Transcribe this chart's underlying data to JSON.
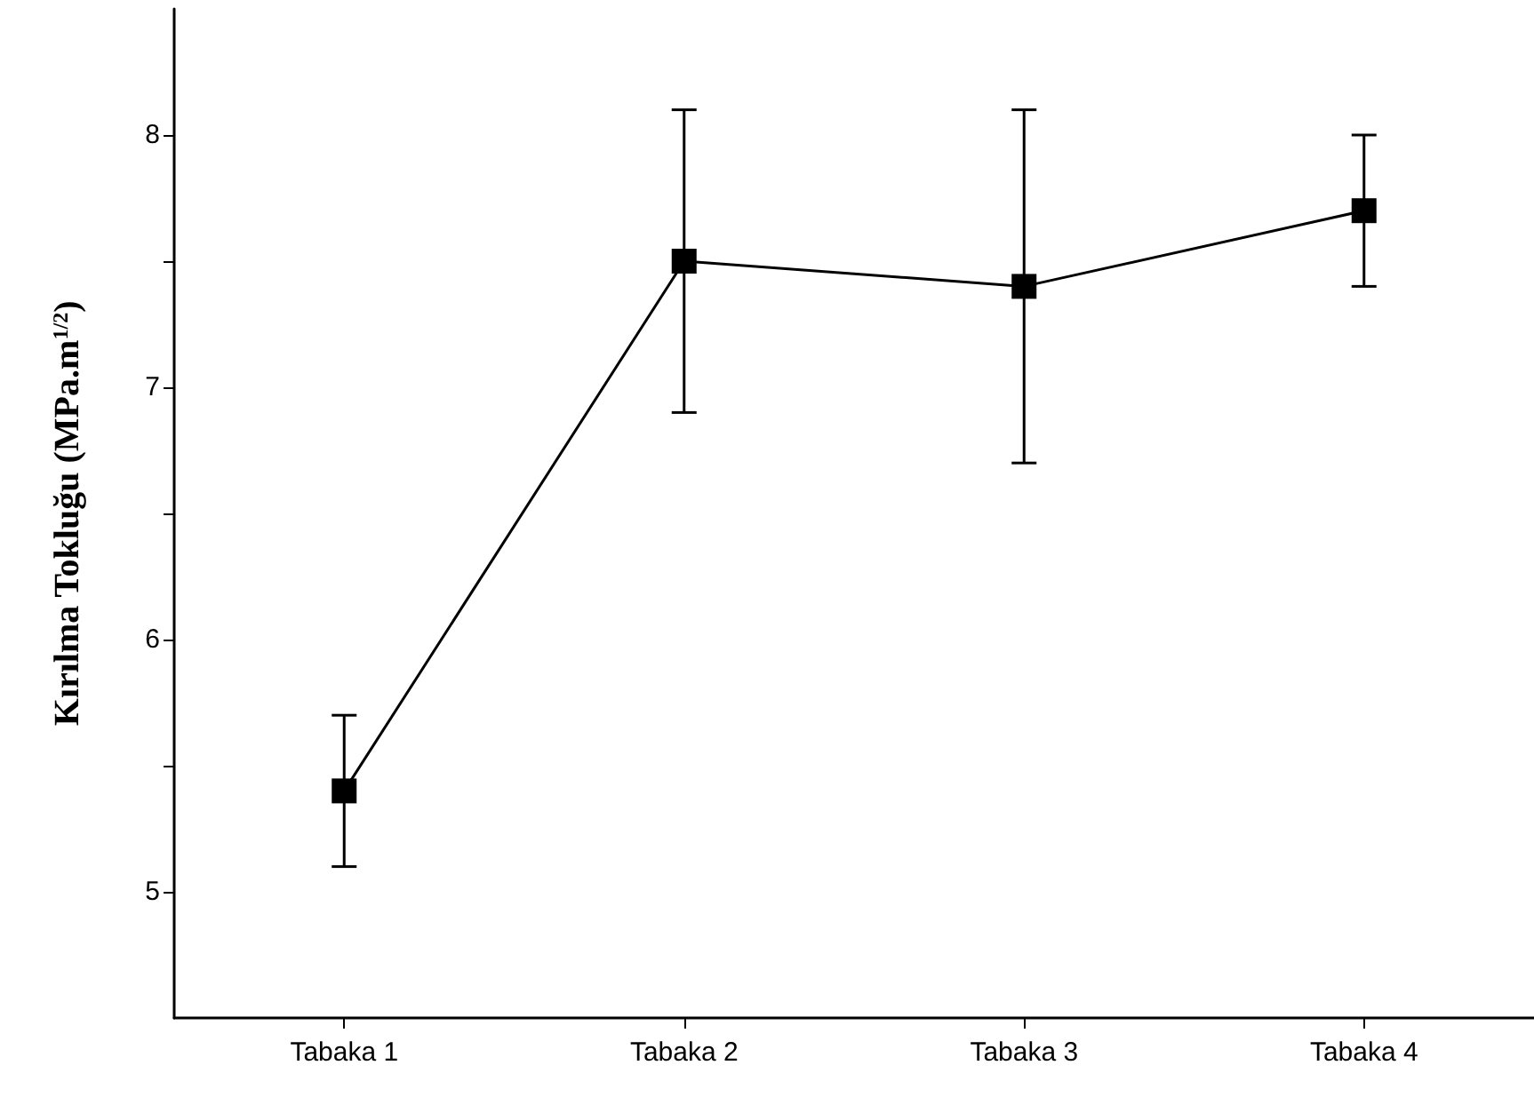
{
  "chart_data": {
    "type": "line",
    "ylabel": "Kırılma Tokluğu (MPa.m$^{1/2}$)",
    "categories": [
      "Tabaka 1",
      "Tabaka 2",
      "Tabaka 3",
      "Tabaka 4"
    ],
    "series": [
      {
        "color": "#000000",
        "values": [
          5.4,
          7.5,
          7.4,
          7.7
        ],
        "errors": [
          [
            5.1,
            5.7
          ],
          [
            6.9,
            8.1
          ],
          [
            6.7,
            8.1
          ],
          [
            7.4,
            8.0
          ]
        ]
      }
    ],
    "ylim": [
      4.5,
      8.5
    ],
    "yticks": [
      5,
      {
        "value": 5.5,
        "label": null
      },
      6,
      {
        "value": 6.5,
        "label": null
      },
      7,
      {
        "value": 7.5,
        "label": null
      },
      8
    ],
    "grid": false,
    "marker": "square",
    "line_style": "solid"
  }
}
